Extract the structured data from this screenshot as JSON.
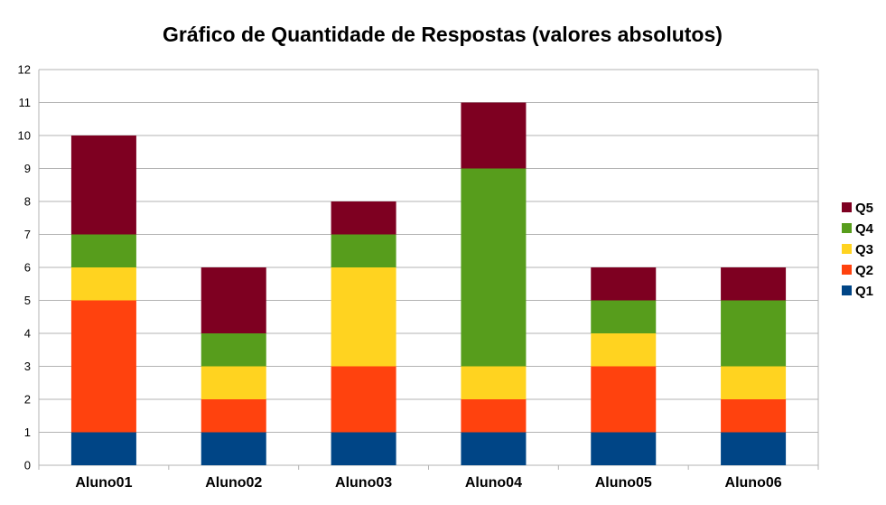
{
  "chart_data": {
    "type": "bar",
    "stacked": true,
    "title": "Gráfico de Quantidade de Respostas (valores absolutos)",
    "xlabel": "",
    "ylabel": "",
    "categories": [
      "Aluno01",
      "Aluno02",
      "Aluno03",
      "Aluno04",
      "Aluno05",
      "Aluno06"
    ],
    "series": [
      {
        "name": "Q1",
        "color": "#004586",
        "values": [
          1,
          1,
          1,
          1,
          1,
          1
        ]
      },
      {
        "name": "Q2",
        "color": "#FF420E",
        "values": [
          4,
          1,
          2,
          1,
          2,
          1
        ]
      },
      {
        "name": "Q3",
        "color": "#FFD320",
        "values": [
          1,
          1,
          3,
          1,
          1,
          1
        ]
      },
      {
        "name": "Q4",
        "color": "#579D1C",
        "values": [
          1,
          1,
          1,
          6,
          1,
          2
        ]
      },
      {
        "name": "Q5",
        "color": "#7E0021",
        "values": [
          3,
          2,
          1,
          2,
          1,
          1
        ]
      }
    ],
    "ylim": [
      0,
      12
    ],
    "yticks": [
      "0",
      "1",
      "2",
      "3",
      "4",
      "5",
      "6",
      "7",
      "8",
      "9",
      "10",
      "11",
      "12"
    ],
    "grid": true,
    "legend_position": "right"
  }
}
